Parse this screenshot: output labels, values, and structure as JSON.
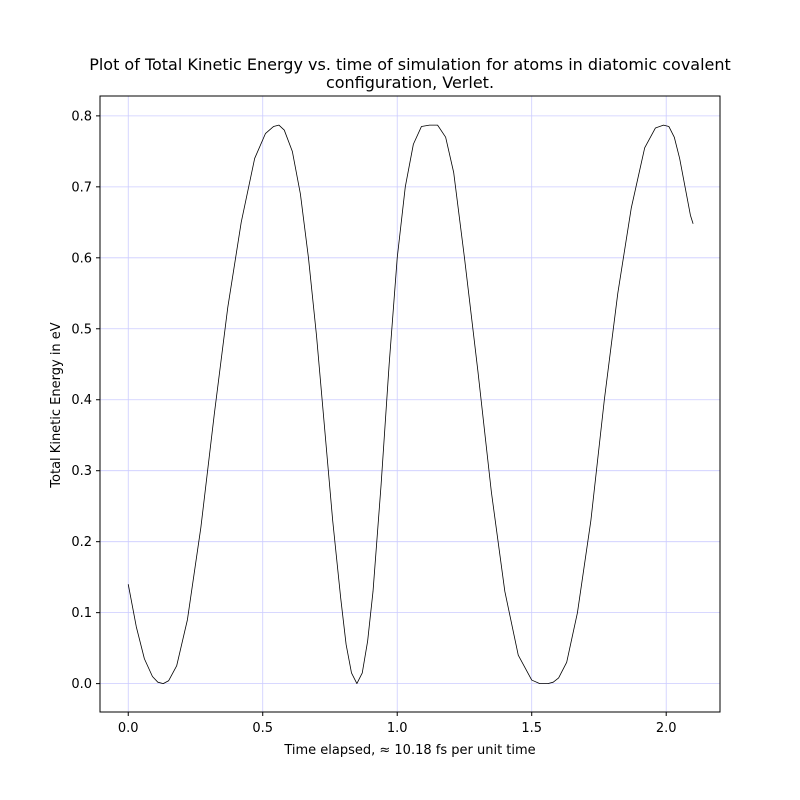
{
  "chart_data": {
    "type": "line",
    "title": [
      "Plot of Total Kinetic Energy vs. time of simulation for atoms in diatomic covalent",
      "configuration, Verlet."
    ],
    "xlabel": "Time elapsed, ≈ 10.18 fs per unit time",
    "ylabel": "Total Kinetic Energy in eV",
    "xlim": [
      -0.105,
      2.2
    ],
    "ylim": [
      -0.04,
      0.828
    ],
    "x_ticks": [
      0.0,
      0.5,
      1.0,
      1.5,
      2.0
    ],
    "x_tick_labels": [
      "0.0",
      "0.5",
      "1.0",
      "1.5",
      "2.0"
    ],
    "y_ticks": [
      0.0,
      0.1,
      0.2,
      0.3,
      0.4,
      0.5,
      0.6,
      0.7,
      0.8
    ],
    "y_tick_labels": [
      "0.0",
      "0.1",
      "0.2",
      "0.3",
      "0.4",
      "0.5",
      "0.6",
      "0.7",
      "0.8"
    ],
    "grid": true,
    "grid_color": "#ccccff",
    "line_color": "#000000",
    "series": [
      {
        "x": [
          0.0,
          0.03,
          0.06,
          0.09,
          0.11,
          0.13,
          0.15,
          0.18,
          0.22,
          0.27,
          0.32,
          0.37,
          0.42,
          0.47,
          0.51,
          0.54,
          0.56,
          0.58,
          0.61,
          0.64,
          0.67,
          0.7,
          0.73,
          0.76,
          0.79,
          0.81,
          0.83,
          0.85,
          0.87,
          0.89,
          0.91,
          0.94,
          0.97,
          1.0,
          1.03,
          1.06,
          1.09,
          1.12,
          1.15,
          1.18,
          1.21,
          1.25,
          1.3,
          1.35,
          1.4,
          1.45,
          1.5,
          1.53,
          1.56,
          1.58,
          1.6,
          1.63,
          1.67,
          1.72,
          1.77,
          1.82,
          1.87,
          1.92,
          1.96,
          1.99,
          2.01,
          2.03,
          2.05,
          2.07,
          2.09,
          2.1
        ],
        "y": [
          0.14,
          0.08,
          0.035,
          0.01,
          0.002,
          0.0,
          0.004,
          0.025,
          0.09,
          0.22,
          0.38,
          0.53,
          0.65,
          0.74,
          0.775,
          0.785,
          0.787,
          0.78,
          0.75,
          0.69,
          0.6,
          0.49,
          0.36,
          0.23,
          0.12,
          0.055,
          0.015,
          0.0,
          0.015,
          0.06,
          0.13,
          0.28,
          0.45,
          0.6,
          0.7,
          0.76,
          0.785,
          0.787,
          0.787,
          0.77,
          0.72,
          0.6,
          0.44,
          0.27,
          0.13,
          0.04,
          0.005,
          0.0,
          0.0,
          0.002,
          0.008,
          0.03,
          0.1,
          0.23,
          0.4,
          0.55,
          0.67,
          0.755,
          0.783,
          0.787,
          0.785,
          0.77,
          0.74,
          0.7,
          0.66,
          0.648
        ]
      }
    ]
  }
}
